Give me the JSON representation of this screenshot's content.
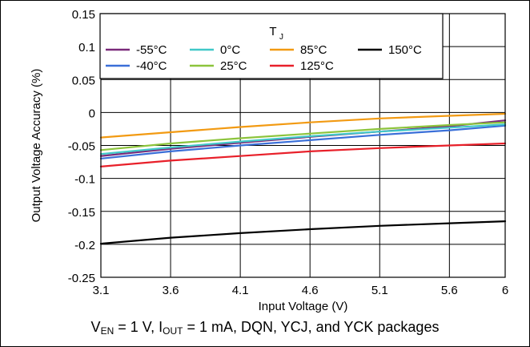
{
  "chart_data": {
    "type": "line",
    "xlabel": "Input Voltage (V)",
    "ylabel": "Output Voltage Accuracy (%)",
    "xlim": [
      3.1,
      6
    ],
    "ylim": [
      -0.25,
      0.15
    ],
    "xticks": [
      3.1,
      3.6,
      4.1,
      4.6,
      5.1,
      5.6,
      6
    ],
    "xtick_labels": [
      "3.1",
      "3.6",
      "4.1",
      "4.6",
      "5.1",
      "5.6",
      "6"
    ],
    "yticks": [
      0.15,
      0.1,
      0.05,
      0,
      -0.05,
      -0.1,
      -0.15,
      -0.2,
      -0.25
    ],
    "ytick_labels": [
      "0.15",
      "0.1",
      "0.05",
      "0",
      "-0.05",
      "-0.1",
      "-0.15",
      "-0.2",
      "-0.25"
    ],
    "grid": true,
    "legend": {
      "title": "T",
      "title_sub": "J",
      "placement": "top-right"
    },
    "series": [
      {
        "name": "-55°C",
        "color": "#7a2a7a",
        "x": [
          3.1,
          3.6,
          4.1,
          4.6,
          5.1,
          5.6,
          6
        ],
        "y": [
          -0.066,
          -0.055,
          -0.046,
          -0.037,
          -0.029,
          -0.021,
          -0.012
        ]
      },
      {
        "name": "-40°C",
        "color": "#3a6fd8",
        "x": [
          3.1,
          3.6,
          4.1,
          4.6,
          5.1,
          5.6,
          6
        ],
        "y": [
          -0.07,
          -0.059,
          -0.05,
          -0.042,
          -0.034,
          -0.027,
          -0.02
        ]
      },
      {
        "name": "0°C",
        "color": "#40c8c8",
        "x": [
          3.1,
          3.6,
          4.1,
          4.6,
          5.1,
          5.6,
          6
        ],
        "y": [
          -0.063,
          -0.053,
          -0.044,
          -0.036,
          -0.029,
          -0.023,
          -0.018
        ]
      },
      {
        "name": "25°C",
        "color": "#8cc43c",
        "x": [
          3.1,
          3.6,
          4.1,
          4.6,
          5.1,
          5.6,
          6
        ],
        "y": [
          -0.057,
          -0.047,
          -0.039,
          -0.032,
          -0.025,
          -0.019,
          -0.015
        ]
      },
      {
        "name": "85°C",
        "color": "#f29a12",
        "x": [
          3.1,
          3.6,
          4.1,
          4.6,
          5.1,
          5.6,
          6
        ],
        "y": [
          -0.038,
          -0.03,
          -0.022,
          -0.015,
          -0.009,
          -0.005,
          -0.002
        ]
      },
      {
        "name": "125°C",
        "color": "#e8202a",
        "x": [
          3.1,
          3.6,
          4.1,
          4.6,
          5.1,
          5.6,
          6
        ],
        "y": [
          -0.082,
          -0.073,
          -0.066,
          -0.059,
          -0.054,
          -0.05,
          -0.047
        ]
      },
      {
        "name": "150°C",
        "color": "#000000",
        "x": [
          3.1,
          3.6,
          4.1,
          4.6,
          5.1,
          5.6,
          6
        ],
        "y": [
          -0.199,
          -0.19,
          -0.183,
          -0.177,
          -0.172,
          -0.168,
          -0.165
        ]
      }
    ]
  },
  "caption": {
    "v_sym": "V",
    "v_sub": "EN",
    "mid": " = 1 V, I",
    "i_sub": "OUT",
    "tail": " = 1 mA, DQN, YCJ, and YCK packages"
  }
}
